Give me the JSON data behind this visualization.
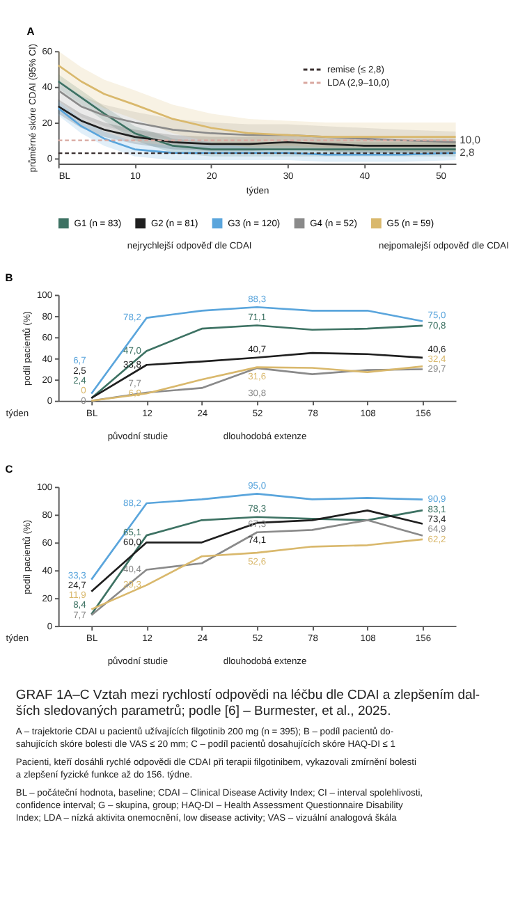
{
  "chart_data": [
    {
      "type": "line",
      "title": "A",
      "xlabel": "týden",
      "ylabel": "průměrné skóre CDAI (95% CI)",
      "x": [
        0,
        3,
        6,
        10,
        15,
        20,
        25,
        30,
        35,
        40,
        45,
        52
      ],
      "xlim": [
        0,
        52
      ],
      "xticks": [
        {
          "value": 0,
          "label": "BL"
        },
        10,
        20,
        30,
        40,
        50
      ],
      "ylim": [
        -3,
        60
      ],
      "yticks": [
        0,
        20,
        40,
        60
      ],
      "legend": "bottom",
      "line_style": "solid",
      "series": [
        {
          "name": "G1 (n = 83)",
          "color": "#3d7263",
          "values": [
            43,
            34,
            25,
            14,
            7,
            5,
            5,
            5,
            5,
            5,
            5,
            5
          ],
          "lower": [
            39,
            30,
            21,
            10,
            3,
            1,
            1,
            1,
            1,
            1,
            1,
            1
          ],
          "upper": [
            47,
            38,
            29,
            18,
            11,
            9,
            9,
            9,
            9,
            9,
            9,
            9
          ]
        },
        {
          "name": "G2 (n = 81)",
          "color": "#1f1f1f",
          "values": [
            29,
            21,
            16,
            12,
            9,
            8,
            8,
            9,
            8,
            7,
            7,
            7
          ],
          "lower": [
            25,
            17,
            12,
            8,
            5,
            4,
            4,
            5,
            4,
            3,
            3,
            3
          ],
          "upper": [
            33,
            25,
            20,
            16,
            13,
            12,
            12,
            13,
            12,
            11,
            11,
            11
          ]
        },
        {
          "name": "G3 (n = 120)",
          "color": "#5aa5dc",
          "values": [
            28,
            18,
            11,
            5,
            3,
            3,
            3,
            3,
            2,
            2,
            2,
            3
          ],
          "lower": [
            24,
            14,
            7,
            1,
            -1,
            -1,
            -1,
            -1,
            -2,
            -2,
            -2,
            -1
          ],
          "upper": [
            32,
            22,
            15,
            9,
            7,
            7,
            7,
            7,
            6,
            6,
            6,
            7
          ]
        },
        {
          "name": "G4 (n = 52)",
          "color": "#8a8a8a",
          "values": [
            38,
            29,
            24,
            20,
            16,
            14,
            13,
            13,
            12,
            11,
            10,
            9
          ],
          "lower": [
            32,
            23,
            18,
            14,
            10,
            8,
            7,
            7,
            6,
            5,
            4,
            3
          ],
          "upper": [
            44,
            35,
            30,
            26,
            22,
            20,
            19,
            19,
            18,
            17,
            16,
            15
          ]
        },
        {
          "name": "G5 (n = 59)",
          "color": "#d9b86c",
          "values": [
            52,
            43,
            36,
            30,
            22,
            17,
            14,
            13,
            12,
            12,
            12,
            12
          ],
          "lower": [
            44,
            35,
            28,
            22,
            14,
            9,
            6,
            5,
            4,
            4,
            4,
            4
          ],
          "upper": [
            60,
            51,
            44,
            38,
            30,
            25,
            22,
            21,
            20,
            20,
            20,
            20
          ]
        }
      ],
      "ref_lines": [
        {
          "axis": "y",
          "value": 2.8,
          "label": "remise (≤ 2,8)",
          "color": "#3a3030",
          "line_style": "dashed"
        },
        {
          "axis": "y",
          "value": 10,
          "label": "LDA (2,9–10,0)",
          "color": "#d9a8a0",
          "line_style": "dashed"
        }
      ],
      "annotations": [
        "nejrychlejší odpověď dle CDAI",
        "nejpomalejší odpověď dle CDAI",
        {
          "text": "10,0",
          "x": 52,
          "y": 10
        },
        {
          "text": "2,8",
          "x": 52,
          "y": 2.8
        }
      ]
    },
    {
      "type": "line",
      "title": "B",
      "xlabel": "týden",
      "ylabel": "podíl pacientů (%)",
      "categories": [
        "BL",
        "12",
        "24",
        "52",
        "78",
        "108",
        "156"
      ],
      "ylim": [
        0,
        100
      ],
      "yticks": [
        0,
        20,
        40,
        60,
        80,
        100
      ],
      "line_style": "solid",
      "series": [
        {
          "color": "#3d7263",
          "values": [
            2.4,
            47.0,
            68,
            71.1,
            67,
            68,
            70.8
          ],
          "value_labels": [
            "2,4",
            "47,0",
            null,
            "71,1",
            null,
            null,
            "70,8"
          ]
        },
        {
          "color": "#1f1f1f",
          "values": [
            2.5,
            33.8,
            37,
            40.7,
            45,
            44,
            40.6
          ],
          "value_labels": [
            "2,5",
            "33,8",
            null,
            "40,7",
            null,
            null,
            "40,6"
          ]
        },
        {
          "color": "#5aa5dc",
          "values": [
            6.7,
            78.2,
            85,
            88.3,
            85,
            85,
            75.0
          ],
          "value_labels": [
            "6,7",
            "78,2",
            null,
            "88,3",
            null,
            null,
            "75,0"
          ]
        },
        {
          "color": "#8a8a8a",
          "values": [
            0,
            7.7,
            12,
            30.8,
            25,
            29,
            29.7
          ],
          "value_labels": [
            "0",
            "7,7",
            null,
            "30,8",
            null,
            null,
            "29,7"
          ]
        },
        {
          "color": "#d9b86c",
          "values": [
            0,
            6.9,
            20,
            31.6,
            31,
            27,
            32.4
          ],
          "value_labels": [
            "0",
            "6,9",
            null,
            "31,6",
            null,
            null,
            "32,4"
          ]
        }
      ],
      "annotations": [
        "původní studie",
        "dlouhodobá extenze"
      ]
    },
    {
      "type": "line",
      "title": "C",
      "xlabel": "týden",
      "ylabel": "podíl pacientů (%)",
      "categories": [
        "BL",
        "12",
        "24",
        "52",
        "78",
        "108",
        "156"
      ],
      "ylim": [
        0,
        100
      ],
      "yticks": [
        0,
        20,
        40,
        60,
        80,
        100
      ],
      "line_style": "solid",
      "series": [
        {
          "color": "#3d7263",
          "values": [
            8.4,
            65.1,
            76,
            78.3,
            77,
            76,
            83.1
          ],
          "value_labels": [
            "8,4",
            "65,1",
            null,
            "78,3",
            null,
            null,
            "83,1"
          ]
        },
        {
          "color": "#1f1f1f",
          "values": [
            24.7,
            60.0,
            60,
            74.1,
            76,
            83,
            73.4
          ],
          "value_labels": [
            "24,7",
            "60,0",
            null,
            "74,1",
            null,
            null,
            "73,4"
          ]
        },
        {
          "color": "#5aa5dc",
          "values": [
            33.3,
            88.2,
            91,
            95.0,
            91,
            92,
            90.9
          ],
          "value_labels": [
            "33,3",
            "88,2",
            null,
            "95,0",
            null,
            null,
            "90,9"
          ]
        },
        {
          "color": "#8a8a8a",
          "values": [
            7.7,
            40.4,
            45,
            67.3,
            69,
            76,
            64.9
          ],
          "value_labels": [
            "7,7",
            "40,4",
            null,
            "67,3",
            null,
            null,
            "64,9"
          ]
        },
        {
          "color": "#d9b86c",
          "values": [
            11.9,
            29.3,
            50,
            52.6,
            57,
            58,
            62.2
          ],
          "value_labels": [
            "11,9",
            "29,3",
            null,
            "52,6",
            null,
            null,
            "62,2"
          ]
        }
      ],
      "annotations": [
        "původní studie",
        "dlouhodobá extenze",
        "GRAF 1A–C  Vztah mezi rychlostí odpovědi na léčbu dle CDAI a zlepšením dal-",
        "ších sledovaných parametrů; podle [6] – Burmester, et al., 2025.",
        "A – trajektorie CDAI u pacientů užívajících filgotinib 200 mg (n = 395); B – podíl pacientů do-",
        "sahujících skóre bolesti dle VAS ≤ 20 mm; C – podíl pacientů dosahujících skóre HAQ-DI ≤ 1",
        "Pacienti, kteří dosáhli rychlé odpovědi dle CDAI při terapii filgotinibem, vykazovali zmírnění bolesti",
        "a zlepšení fyzické funkce až do 156. týdne.",
        "BL – počáteční hodnota, baseline; CDAI – Clinical Disease Activity Index; CI – interval spolehlivosti,",
        "confidence interval; G – skupina, group; HAQ-DI – Health Assessment Questionnaire Disability",
        "Index; LDA – nízká aktivita onemocnění, low disease activity; VAS – vizuální analogová škála"
      ]
    }
  ]
}
